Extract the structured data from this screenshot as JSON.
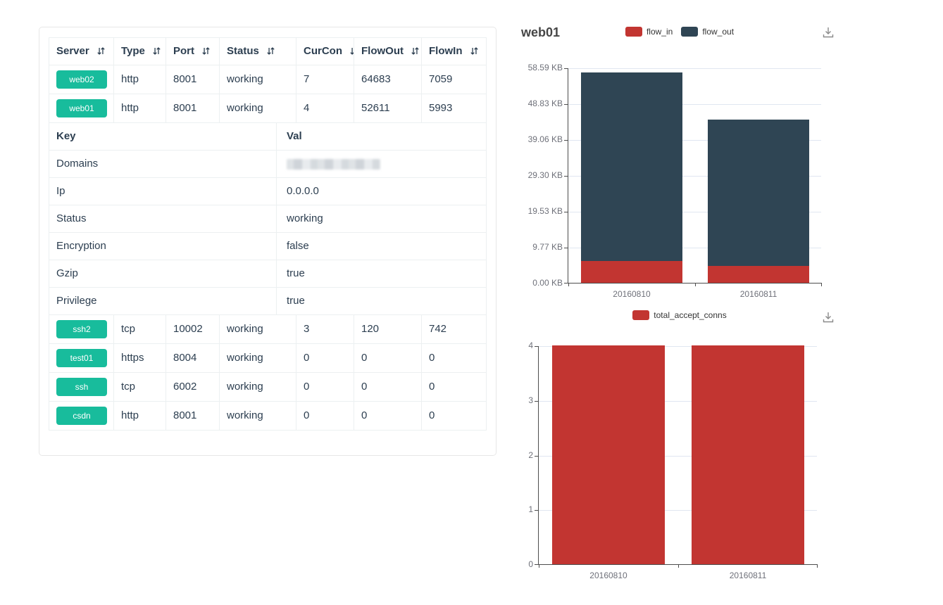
{
  "card": {
    "table": {
      "columns": [
        {
          "label": "Server",
          "sortable": true
        },
        {
          "label": "Type",
          "sortable": true
        },
        {
          "label": "Port",
          "sortable": true
        },
        {
          "label": "Status",
          "sortable": true
        },
        {
          "label": "CurCon",
          "sortable": true
        },
        {
          "label": "FlowOut",
          "sortable": true
        },
        {
          "label": "FlowIn",
          "sortable": true
        }
      ],
      "rows_top": [
        {
          "server": "web02",
          "type": "http",
          "port": "8001",
          "status": "working",
          "curcon": "7",
          "flowout": "64683",
          "flowin": "7059"
        },
        {
          "server": "web01",
          "type": "http",
          "port": "8001",
          "status": "working",
          "curcon": "4",
          "flowout": "52611",
          "flowin": "5993"
        }
      ],
      "details": {
        "key_header": "Key",
        "val_header": "Val",
        "rows": [
          {
            "key": "Domains",
            "val": "",
            "redacted": true
          },
          {
            "key": "Ip",
            "val": "0.0.0.0",
            "redacted": false
          },
          {
            "key": "Status",
            "val": "working",
            "redacted": false
          },
          {
            "key": "Encryption",
            "val": "false",
            "redacted": false
          },
          {
            "key": "Gzip",
            "val": "true",
            "redacted": false
          },
          {
            "key": "Privilege",
            "val": "true",
            "redacted": false
          }
        ]
      },
      "rows_bottom": [
        {
          "server": "ssh2",
          "type": "tcp",
          "port": "10002",
          "status": "working",
          "curcon": "3",
          "flowout": "120",
          "flowin": "742"
        },
        {
          "server": "test01",
          "type": "https",
          "port": "8004",
          "status": "working",
          "curcon": "0",
          "flowout": "0",
          "flowin": "0"
        },
        {
          "server": "ssh",
          "type": "tcp",
          "port": "6002",
          "status": "working",
          "curcon": "0",
          "flowout": "0",
          "flowin": "0"
        },
        {
          "server": "csdn",
          "type": "http",
          "port": "8001",
          "status": "working",
          "curcon": "0",
          "flowout": "0",
          "flowin": "0"
        }
      ]
    }
  },
  "icons": {
    "sort": "arrow-down-up",
    "download": "download-to-tray"
  },
  "colors": {
    "badge_green": "#18bc9c",
    "series_red": "#c23531",
    "series_dark": "#2f4554",
    "header_text": "#2c3e50",
    "axis_label": "#6e7079",
    "gridline": "#e0e6f1"
  },
  "chart_data": [
    {
      "type": "bar",
      "stacked": true,
      "title": "web01",
      "categories": [
        "20160810",
        "20160811"
      ],
      "series": [
        {
          "name": "flow_in",
          "color": "#c23531",
          "values": [
            5993,
            4650
          ]
        },
        {
          "name": "flow_out",
          "color": "#2f4554",
          "values": [
            52611,
            40850
          ]
        }
      ],
      "y_max": 60000,
      "y_ticks": [
        "0.00 KB",
        "9.77 KB",
        "19.53 KB",
        "29.30 KB",
        "39.06 KB",
        "48.83 KB",
        "58.59 KB"
      ],
      "xlabel": "",
      "ylabel": "",
      "legend_position": "top-center",
      "grid": true
    },
    {
      "type": "bar",
      "stacked": false,
      "title": "",
      "categories": [
        "20160810",
        "20160811"
      ],
      "series": [
        {
          "name": "total_accept_conns",
          "color": "#c23531",
          "values": [
            4,
            4
          ]
        }
      ],
      "y_max": 4,
      "y_ticks": [
        "0",
        "1",
        "2",
        "3",
        "4"
      ],
      "xlabel": "",
      "ylabel": "",
      "legend_position": "top-center",
      "grid": true
    }
  ]
}
